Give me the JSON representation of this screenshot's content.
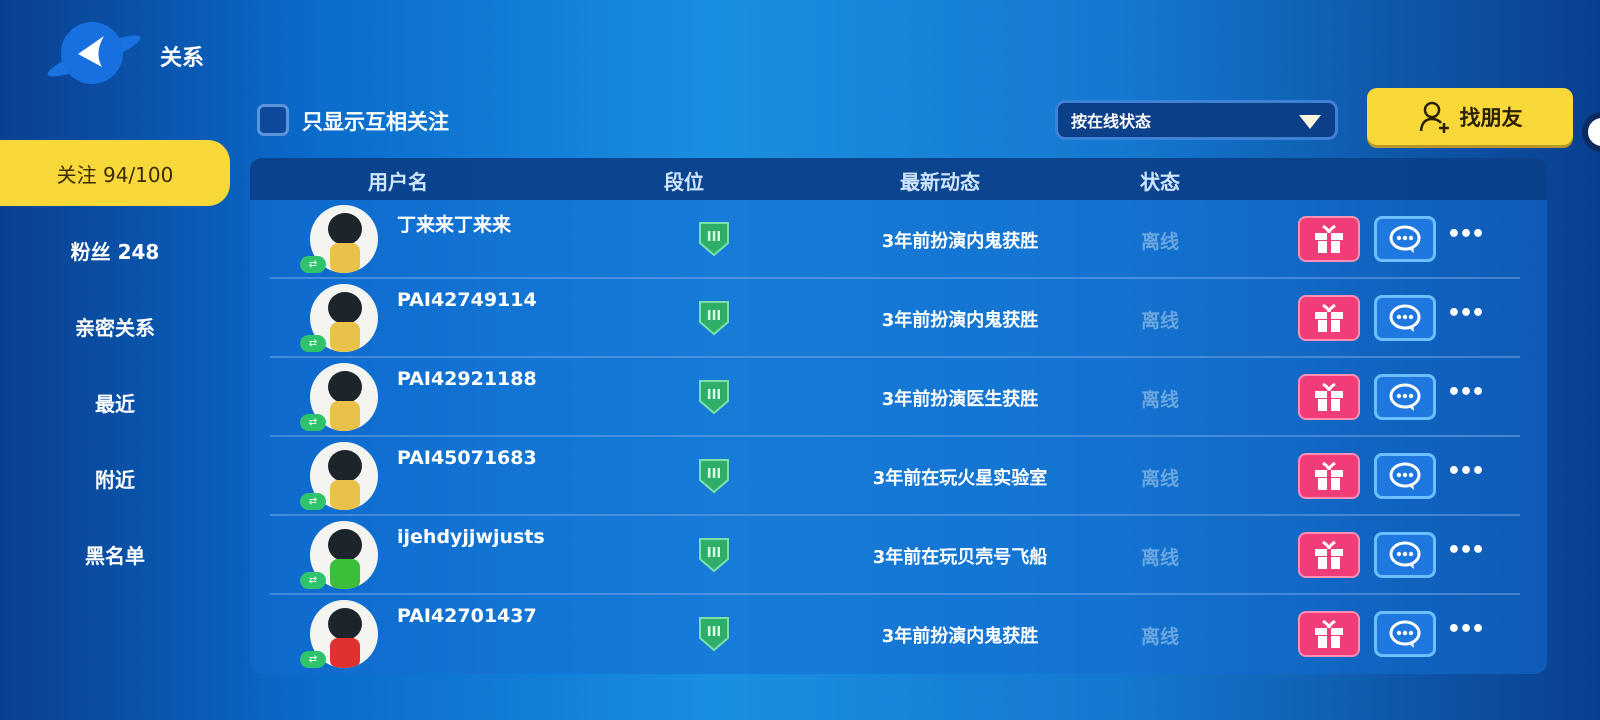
{
  "header": {
    "title": "关系",
    "back_icon": "back-arrow-planet-icon"
  },
  "sidebar": {
    "items": [
      {
        "label": "关注 94/100",
        "active": true
      },
      {
        "label": "粉丝 248"
      },
      {
        "label": "亲密关系"
      },
      {
        "label": "最近"
      },
      {
        "label": "附近"
      },
      {
        "label": "黑名单"
      }
    ]
  },
  "filter": {
    "mutual_only_label": "只显示互相关注",
    "mutual_only_checked": false,
    "sort_value": "按在线状态",
    "find_friends_label": "找朋友"
  },
  "table": {
    "columns": [
      "用户名",
      "段位",
      "最新动态",
      "状态"
    ],
    "rows": [
      {
        "name": "丁来来丁来来",
        "rank": "III",
        "activity": "3年前扮演内鬼获胜",
        "status": "离线",
        "avatar_color": "#e8c24a"
      },
      {
        "name": "PAI42749114",
        "rank": "III",
        "activity": "3年前扮演内鬼获胜",
        "status": "离线",
        "avatar_color": "#e8c24a"
      },
      {
        "name": "PAI42921188",
        "rank": "III",
        "activity": "3年前扮演医生获胜",
        "status": "离线",
        "avatar_color": "#e8c24a"
      },
      {
        "name": "PAI45071683",
        "rank": "III",
        "activity": "3年前在玩火星实验室",
        "status": "离线",
        "avatar_color": "#e8c24a"
      },
      {
        "name": "ijehdyjjwjusts",
        "rank": "III",
        "activity": "3年前在玩贝壳号飞船",
        "status": "离线",
        "avatar_color": "#3bbf3b"
      },
      {
        "name": "PAI42701437",
        "rank": "III",
        "activity": "3年前扮演内鬼获胜",
        "status": "离线",
        "avatar_color": "#e03030"
      }
    ],
    "more_label": "•••"
  },
  "colors": {
    "accent_yellow": "#f9d83a",
    "gift_pink": "#f03d78",
    "chat_blue": "#1e78e0",
    "rank_green": "#2fae6a"
  }
}
